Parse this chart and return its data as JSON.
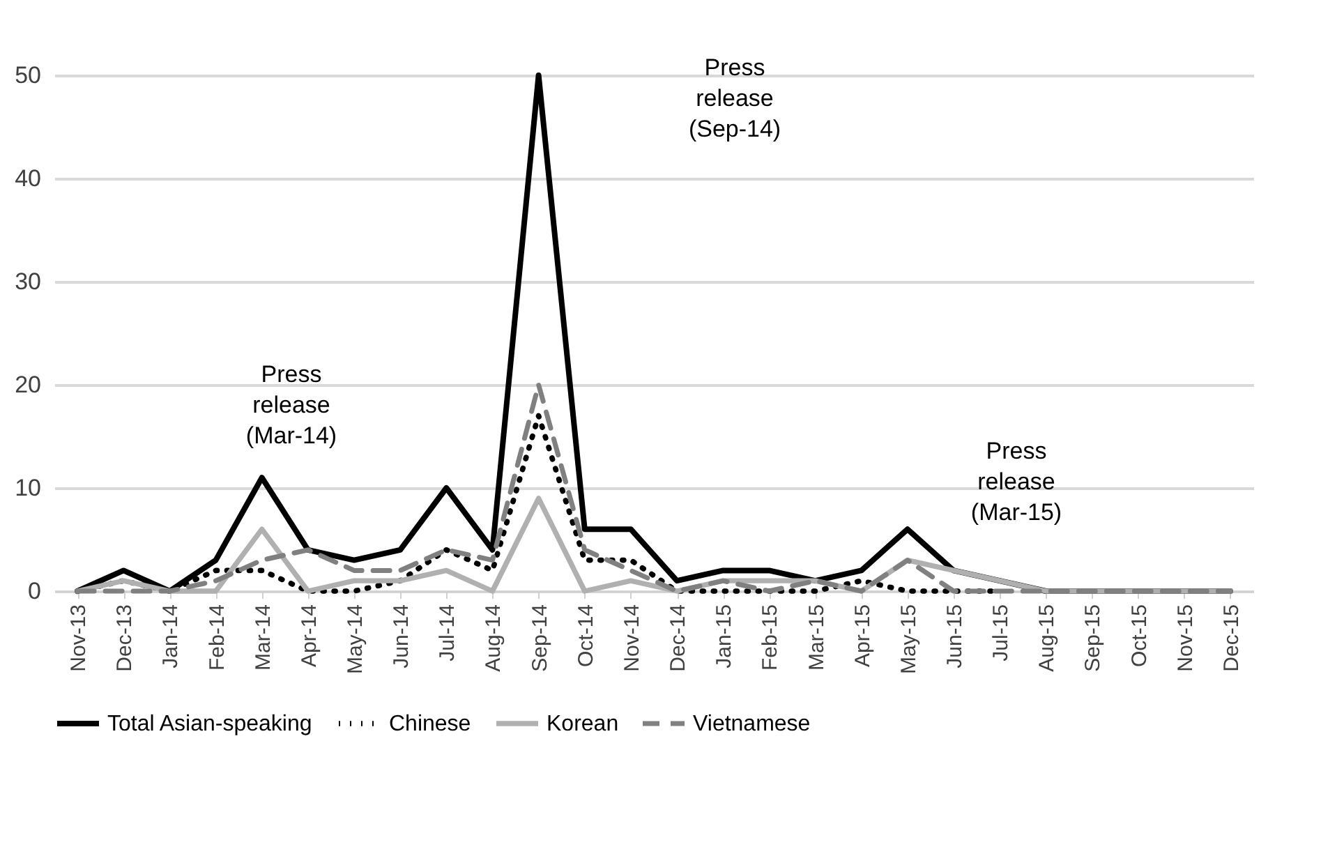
{
  "chart_data": {
    "type": "line",
    "categories": [
      "Nov-13",
      "Dec-13",
      "Jan-14",
      "Feb-14",
      "Mar-14",
      "Apr-14",
      "May-14",
      "Jun-14",
      "Jul-14",
      "Aug-14",
      "Sep-14",
      "Oct-14",
      "Nov-14",
      "Dec-14",
      "Jan-15",
      "Feb-15",
      "Mar-15",
      "Apr-15",
      "May-15",
      "Jun-15",
      "Jul-15",
      "Aug-15",
      "Sep-15",
      "Oct-15",
      "Nov-15",
      "Dec-15"
    ],
    "series": [
      {
        "name": "Total Asian-speaking",
        "color": "#000000",
        "line_style": "solid",
        "values": [
          0,
          2,
          0,
          3,
          11,
          4,
          3,
          4,
          10,
          4,
          50,
          6,
          6,
          1,
          2,
          2,
          1,
          2,
          6,
          2,
          1,
          0,
          0,
          0,
          0,
          0
        ]
      },
      {
        "name": "Chinese",
        "color": "#000000",
        "line_style": "dotted",
        "values": [
          0,
          1,
          0,
          2,
          2,
          0,
          0,
          1,
          4,
          2,
          17,
          3,
          3,
          0,
          0,
          0,
          0,
          1,
          0,
          0,
          0,
          null,
          null,
          null,
          null,
          null
        ]
      },
      {
        "name": "Korean",
        "color": "#b0b0b0",
        "line_style": "solid",
        "values": [
          0,
          1,
          0,
          0,
          6,
          0,
          1,
          1,
          2,
          0,
          9,
          0,
          1,
          0,
          1,
          1,
          1,
          0,
          3,
          2,
          1,
          0,
          0,
          0,
          0,
          0
        ]
      },
      {
        "name": "Vietnamese",
        "color": "#808080",
        "line_style": "dashed",
        "values": [
          0,
          0,
          0,
          1,
          3,
          4,
          2,
          2,
          4,
          3,
          20,
          4,
          2,
          0,
          1,
          0,
          1,
          0,
          3,
          0,
          0,
          0,
          0,
          0,
          0,
          0
        ]
      }
    ],
    "ylim": [
      0,
      50
    ],
    "yticks": [
      0,
      10,
      20,
      30,
      40,
      50
    ],
    "grid": "y",
    "legend": "bottom",
    "annotations": [
      "Press release (Mar-14)",
      "Press release (Sep-14)",
      "Press release (Mar-15)"
    ]
  }
}
